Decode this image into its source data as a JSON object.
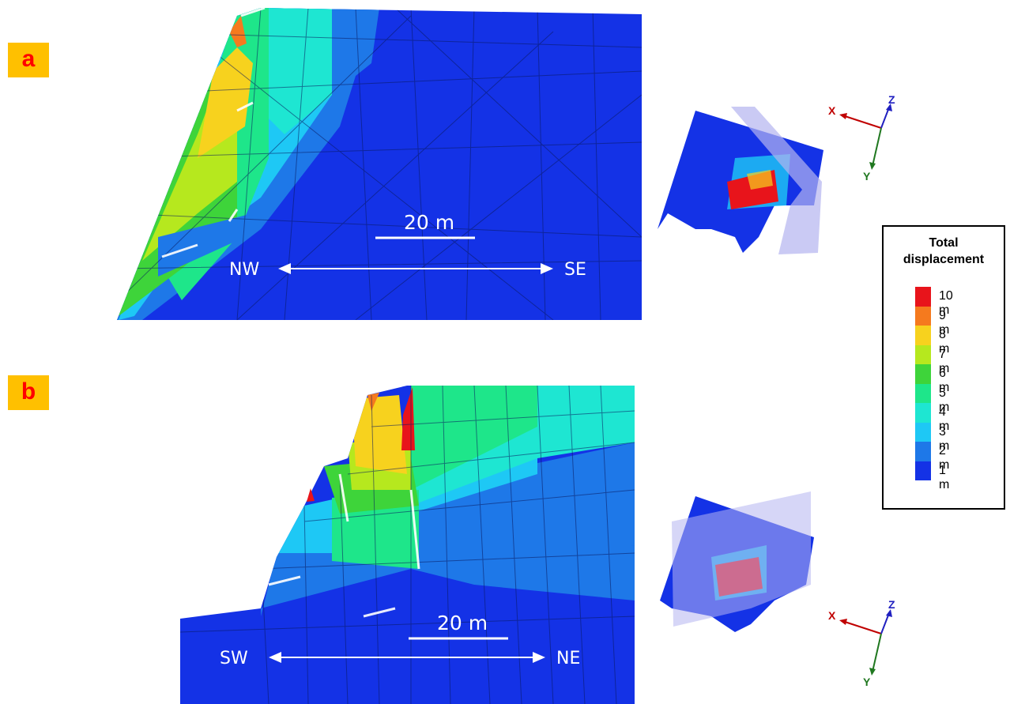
{
  "panels": [
    {
      "label": "a",
      "scale_bar": "20 m",
      "dir_left": "NW",
      "dir_right": "SE"
    },
    {
      "label": "b",
      "scale_bar": "20 m",
      "dir_left": "SW",
      "dir_right": "NE"
    }
  ],
  "axes": {
    "x": "X",
    "y": "Y",
    "z": "Z"
  },
  "legend": {
    "title_line1": "Total",
    "title_line2": "displacement",
    "items": [
      {
        "label": "10 m",
        "color": "#e8141b"
      },
      {
        "label": "9 m",
        "color": "#f57a1e"
      },
      {
        "label": "8 m",
        "color": "#f7d21e"
      },
      {
        "label": "7 m",
        "color": "#b6e81e"
      },
      {
        "label": "6 m",
        "color": "#3ed43a"
      },
      {
        "label": "5 m",
        "color": "#1ee68a"
      },
      {
        "label": "4 m",
        "color": "#1ee6d2"
      },
      {
        "label": "3 m",
        "color": "#1ec8f5"
      },
      {
        "label": "2 m",
        "color": "#1e78e8"
      },
      {
        "label": "1 m",
        "color": "#1432e6"
      }
    ]
  },
  "colors": {
    "base_blue": "#1432e6",
    "plane_lavender": "#b4b4f0",
    "label_bg": "#ffc000",
    "label_text": "#ff0000",
    "axis_x": "#c00000",
    "axis_y": "#207820",
    "axis_z": "#2020c0"
  }
}
